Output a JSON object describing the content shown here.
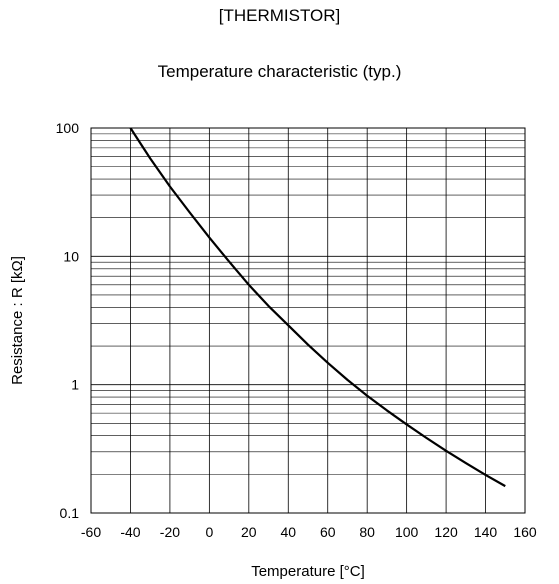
{
  "header": {
    "title": "[THERMISTOR]",
    "subtitle": "Temperature characteristic (typ.)"
  },
  "chart_data": {
    "type": "line",
    "xlabel": "Temperature [°C]",
    "ylabel": "Resistance : R [kΩ]",
    "xlim": [
      -60,
      160
    ],
    "ylim": [
      0.1,
      100
    ],
    "yscale": "log",
    "grid": true,
    "x_ticks": [
      -60,
      -40,
      -20,
      0,
      20,
      40,
      60,
      80,
      100,
      120,
      140,
      160
    ],
    "y_ticks": [
      0.1,
      1,
      10,
      100
    ],
    "y_tick_labels": [
      "0.1",
      "1",
      "10",
      "100"
    ],
    "series": [
      {
        "color": "#000000",
        "x": [
          -40,
          -30,
          -20,
          -10,
          0,
          10,
          20,
          30,
          40,
          50,
          60,
          70,
          80,
          90,
          100,
          110,
          120,
          130,
          140,
          150
        ],
        "y": [
          100,
          58,
          35,
          22,
          14,
          9.1,
          6.0,
          4.1,
          2.9,
          2.05,
          1.48,
          1.09,
          0.82,
          0.63,
          0.49,
          0.385,
          0.305,
          0.245,
          0.198,
          0.162
        ]
      }
    ]
  }
}
